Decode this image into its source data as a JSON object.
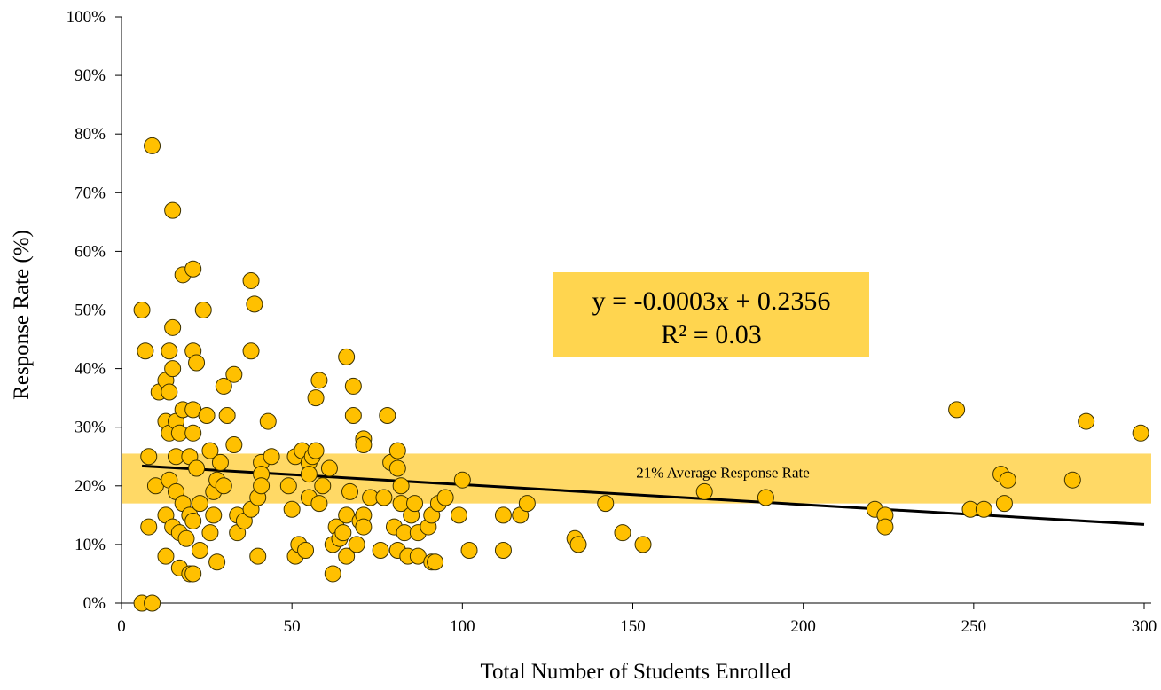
{
  "chart_data": {
    "type": "scatter",
    "title": "",
    "xlabel": "Total Number of Students Enrolled",
    "ylabel": "Response Rate (%)",
    "xlim": [
      0,
      300
    ],
    "ylim": [
      0,
      100
    ],
    "x_ticks": [
      "0",
      "50",
      "100",
      "150",
      "200",
      "250",
      "300"
    ],
    "y_ticks": [
      "0%",
      "10%",
      "20%",
      "30%",
      "40%",
      "50%",
      "60%",
      "70%",
      "80%",
      "90%",
      "100%"
    ],
    "grid": false,
    "band": {
      "label": "21% Average Response Rate",
      "y_min": 17,
      "y_max": 25.5,
      "color": "#FFD966"
    },
    "trendline": {
      "equation": "y = -0.0003x + 0.2356",
      "r_squared": "R² = 0.03",
      "x_start": 6,
      "y_start": 23.4,
      "x_end": 300,
      "y_end": 13.4,
      "color": "#000000"
    },
    "equation_box_color": "#FFD54F",
    "marker": {
      "fill": "#FFC000",
      "stroke": "#3a3000"
    },
    "points": [
      [
        6,
        0
      ],
      [
        9,
        0
      ],
      [
        6,
        50
      ],
      [
        7,
        43
      ],
      [
        8,
        25
      ],
      [
        8,
        13
      ],
      [
        9,
        78
      ],
      [
        10,
        20
      ],
      [
        11,
        36
      ],
      [
        13,
        38
      ],
      [
        13,
        31
      ],
      [
        13,
        15
      ],
      [
        13,
        8
      ],
      [
        14,
        43
      ],
      [
        14,
        36
      ],
      [
        14,
        29
      ],
      [
        14,
        21
      ],
      [
        15,
        67
      ],
      [
        15,
        47
      ],
      [
        15,
        40
      ],
      [
        15,
        13
      ],
      [
        16,
        25
      ],
      [
        16,
        19
      ],
      [
        16,
        31
      ],
      [
        17,
        29
      ],
      [
        17,
        12
      ],
      [
        17,
        6
      ],
      [
        18,
        56
      ],
      [
        18,
        33
      ],
      [
        18,
        17
      ],
      [
        19,
        11
      ],
      [
        20,
        25
      ],
      [
        20,
        5
      ],
      [
        20,
        15
      ],
      [
        21,
        57
      ],
      [
        21,
        43
      ],
      [
        21,
        33
      ],
      [
        21,
        29
      ],
      [
        21,
        14
      ],
      [
        21,
        5
      ],
      [
        22,
        41
      ],
      [
        22,
        23
      ],
      [
        23,
        17
      ],
      [
        23,
        9
      ],
      [
        24,
        50
      ],
      [
        25,
        32
      ],
      [
        26,
        12
      ],
      [
        26,
        26
      ],
      [
        27,
        15
      ],
      [
        27,
        19
      ],
      [
        28,
        21
      ],
      [
        28,
        7
      ],
      [
        29,
        24
      ],
      [
        30,
        37
      ],
      [
        30,
        20
      ],
      [
        31,
        32
      ],
      [
        33,
        39
      ],
      [
        33,
        27
      ],
      [
        34,
        12
      ],
      [
        34,
        15
      ],
      [
        36,
        14
      ],
      [
        38,
        43
      ],
      [
        38,
        55
      ],
      [
        38,
        16
      ],
      [
        39,
        51
      ],
      [
        40,
        18
      ],
      [
        40,
        8
      ],
      [
        41,
        24
      ],
      [
        41,
        22
      ],
      [
        41,
        20
      ],
      [
        43,
        31
      ],
      [
        44,
        25
      ],
      [
        49,
        20
      ],
      [
        50,
        16
      ],
      [
        51,
        25
      ],
      [
        51,
        8
      ],
      [
        52,
        10
      ],
      [
        53,
        26
      ],
      [
        54,
        9
      ],
      [
        55,
        24
      ],
      [
        55,
        22
      ],
      [
        55,
        18
      ],
      [
        56,
        25
      ],
      [
        57,
        26
      ],
      [
        57,
        35
      ],
      [
        58,
        38
      ],
      [
        58,
        17
      ],
      [
        59,
        20
      ],
      [
        61,
        23
      ],
      [
        62,
        10
      ],
      [
        62,
        5
      ],
      [
        63,
        13
      ],
      [
        64,
        11
      ],
      [
        65,
        12
      ],
      [
        66,
        42
      ],
      [
        66,
        15
      ],
      [
        66,
        8
      ],
      [
        67,
        19
      ],
      [
        68,
        37
      ],
      [
        68,
        32
      ],
      [
        69,
        10
      ],
      [
        70,
        14
      ],
      [
        71,
        28
      ],
      [
        71,
        27
      ],
      [
        71,
        15
      ],
      [
        71,
        13
      ],
      [
        73,
        18
      ],
      [
        76,
        9
      ],
      [
        77,
        18
      ],
      [
        78,
        32
      ],
      [
        79,
        24
      ],
      [
        80,
        13
      ],
      [
        81,
        26
      ],
      [
        81,
        23
      ],
      [
        81,
        9
      ],
      [
        82,
        20
      ],
      [
        82,
        17
      ],
      [
        83,
        12
      ],
      [
        84,
        8
      ],
      [
        85,
        15
      ],
      [
        86,
        17
      ],
      [
        87,
        12
      ],
      [
        87,
        8
      ],
      [
        90,
        13
      ],
      [
        91,
        15
      ],
      [
        91,
        7
      ],
      [
        92,
        7
      ],
      [
        93,
        17
      ],
      [
        95,
        18
      ],
      [
        99,
        15
      ],
      [
        100,
        21
      ],
      [
        102,
        9
      ],
      [
        112,
        15
      ],
      [
        112,
        9
      ],
      [
        117,
        15
      ],
      [
        119,
        17
      ],
      [
        133,
        11
      ],
      [
        134,
        10
      ],
      [
        142,
        17
      ],
      [
        147,
        12
      ],
      [
        153,
        10
      ],
      [
        171,
        19
      ],
      [
        189,
        18
      ],
      [
        221,
        16
      ],
      [
        224,
        15
      ],
      [
        224,
        13
      ],
      [
        245,
        33
      ],
      [
        249,
        16
      ],
      [
        253,
        16
      ],
      [
        258,
        22
      ],
      [
        259,
        17
      ],
      [
        260,
        21
      ],
      [
        279,
        21
      ],
      [
        283,
        31
      ],
      [
        299,
        29
      ]
    ]
  }
}
